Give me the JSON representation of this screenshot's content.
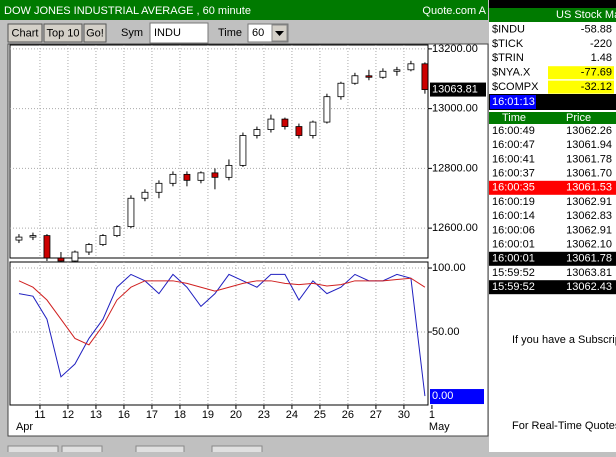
{
  "title_bar": {
    "title": "DOW JONES INDUSTRIAL AVERAGE , 60 minute",
    "source": "Quote.com A"
  },
  "toolbar": {
    "buttons": [
      "Chart",
      "Top 10",
      "Go!"
    ],
    "symbol_label": "Sym",
    "symbol": "INDU",
    "time_label": "Time",
    "time": "60"
  },
  "chart_data": [
    {
      "type": "candlestick",
      "x": [
        0.25,
        0.75,
        1.25,
        1.75,
        2.25,
        2.75,
        3.25,
        3.75,
        4.25,
        4.75,
        5.25,
        5.75,
        6.25,
        6.75,
        7.25,
        7.75,
        8.25,
        8.75,
        9.25,
        9.75,
        10.25,
        10.75,
        11.25,
        11.75,
        12.25,
        12.75,
        13.25,
        13.75,
        14.25,
        14.75
      ],
      "open": [
        12560,
        12570,
        12575,
        12500,
        12490,
        12520,
        12545,
        12575,
        12605,
        12700,
        12720,
        12750,
        12780,
        12760,
        12785,
        12770,
        12810,
        12910,
        12930,
        12965,
        12940,
        12910,
        12955,
        13040,
        13085,
        13110,
        13105,
        13125,
        13130,
        13150
      ],
      "high": [
        12580,
        12585,
        12580,
        12520,
        12525,
        12550,
        12580,
        12610,
        12710,
        12730,
        12760,
        12790,
        12790,
        12790,
        12800,
        12830,
        12920,
        12940,
        12980,
        12970,
        12950,
        12960,
        13050,
        13090,
        13120,
        13130,
        13135,
        13140,
        13160,
        13155
      ],
      "low": [
        12550,
        12560,
        12490,
        12470,
        12460,
        12510,
        12540,
        12570,
        12600,
        12690,
        12700,
        12740,
        12740,
        12750,
        12730,
        12760,
        12805,
        12900,
        12920,
        12930,
        12900,
        12900,
        12950,
        13030,
        13080,
        13095,
        13100,
        13110,
        13125,
        13050
      ],
      "close": [
        12570,
        12575,
        12500,
        12490,
        12520,
        12545,
        12575,
        12605,
        12700,
        12720,
        12750,
        12780,
        12760,
        12785,
        12770,
        12810,
        12910,
        12930,
        12965,
        12940,
        12910,
        12955,
        13040,
        13085,
        13110,
        13105,
        13125,
        13130,
        13150,
        13063.81
      ],
      "up_color": "#ffffff",
      "down_color": "#cc0000",
      "xlim": [
        -0.07,
        14.86
      ],
      "xticks": [
        {
          "value": 1,
          "label": "11"
        },
        {
          "value": 2,
          "label": "12"
        },
        {
          "value": 3,
          "label": "13"
        },
        {
          "value": 4,
          "label": "16"
        },
        {
          "value": 5,
          "label": "17"
        },
        {
          "value": 6,
          "label": "18"
        },
        {
          "value": 7,
          "label": "19"
        },
        {
          "value": 8,
          "label": "20"
        },
        {
          "value": 9,
          "label": "23"
        },
        {
          "value": 10,
          "label": "24"
        },
        {
          "value": 11,
          "label": "25"
        },
        {
          "value": 12,
          "label": "26"
        },
        {
          "value": 13,
          "label": "27"
        },
        {
          "value": 14,
          "label": "30"
        },
        {
          "value": 15,
          "label": "1"
        }
      ],
      "month_labels": [
        {
          "value": 0,
          "label": "Apr"
        },
        {
          "value": 15,
          "label": "May"
        }
      ],
      "ylim": [
        12500,
        13213
      ],
      "yticks": [
        {
          "value": 12600,
          "label": "12600.00"
        },
        {
          "value": 12800,
          "label": "12800.00"
        },
        {
          "value": 13000,
          "label": "13000.00"
        },
        {
          "value": 13200,
          "label": "13200.00"
        }
      ],
      "grid": true
    },
    {
      "type": "line",
      "x": [
        0.25,
        0.75,
        1.25,
        1.75,
        2.25,
        2.75,
        3.25,
        3.75,
        4.25,
        4.75,
        5.25,
        5.75,
        6.25,
        6.75,
        7.25,
        7.75,
        8.25,
        8.75,
        9.25,
        9.75,
        10.25,
        10.75,
        11.25,
        11.75,
        12.25,
        12.75,
        13.25,
        13.75,
        14.25,
        14.75
      ],
      "series": [
        {
          "color": "#2020c0",
          "values": [
            80,
            78,
            60,
            15,
            25,
            45,
            60,
            85,
            95,
            90,
            80,
            95,
            85,
            70,
            80,
            95,
            90,
            85,
            95,
            95,
            75,
            90,
            80,
            85,
            95,
            90,
            90,
            95,
            92,
            0
          ]
        },
        {
          "color": "#d02020",
          "values": [
            90,
            85,
            75,
            60,
            45,
            40,
            55,
            75,
            85,
            90,
            90,
            90,
            88,
            85,
            82,
            85,
            88,
            90,
            90,
            88,
            87,
            88,
            86,
            87,
            90,
            90,
            90,
            91,
            92,
            85
          ]
        }
      ],
      "xlim": [
        -0.07,
        14.86
      ],
      "ylim": [
        -7,
        104.7
      ],
      "yticks": [
        {
          "value": 50,
          "label": "50.00"
        },
        {
          "value": 100,
          "label": "100.00"
        }
      ],
      "current_value": {
        "value": 0,
        "label": "0.00"
      },
      "grid": true
    }
  ],
  "quotes_panel": {
    "title": "US Stock Ma",
    "rows": [
      {
        "symbol": "$INDU",
        "change": -58.88,
        "background": "#ffffff"
      },
      {
        "symbol": "$TICK",
        "change": -220,
        "background": "#ffffff"
      },
      {
        "symbol": "$TRIN",
        "change": 1.48,
        "background": "#ffffff"
      },
      {
        "symbol": "$NYA.X",
        "change": -77.69,
        "background": "#ffff00"
      },
      {
        "symbol": "$COMPX",
        "change": -32.12,
        "background": "#ffff00"
      }
    ],
    "time": "16:01:13",
    "trades": {
      "headers": [
        "Time",
        "Price"
      ],
      "rows": [
        {
          "time": "16:00:49",
          "price": "13062.26",
          "background": "#ffffff"
        },
        {
          "time": "16:00:47",
          "price": "13061.94",
          "background": "#ffffff"
        },
        {
          "time": "16:00:41",
          "price": "13061.78",
          "background": "#ffffff"
        },
        {
          "time": "16:00:37",
          "price": "13061.70",
          "background": "#ffffff"
        },
        {
          "time": "16:00:35",
          "price": "13061.53",
          "background": "#ff0000"
        },
        {
          "time": "16:00:19",
          "price": "13062.91",
          "background": "#ffffff"
        },
        {
          "time": "16:00:14",
          "price": "13062.83",
          "background": "#ffffff"
        },
        {
          "time": "16:00:06",
          "price": "13062.91",
          "background": "#ffffff"
        },
        {
          "time": "16:00:01",
          "price": "13062.10",
          "background": "#ffffff"
        },
        {
          "time": "16:00:01",
          "price": "13061.78",
          "background": "#000000"
        },
        {
          "time": "15:59:52",
          "price": "13063.81",
          "background": "#ffffff"
        },
        {
          "time": "15:59:52",
          "price": "13062.43",
          "background": "#000000"
        }
      ]
    },
    "notes": [
      "If you have a Subscrip",
      "For Real-Time Quotes"
    ]
  }
}
